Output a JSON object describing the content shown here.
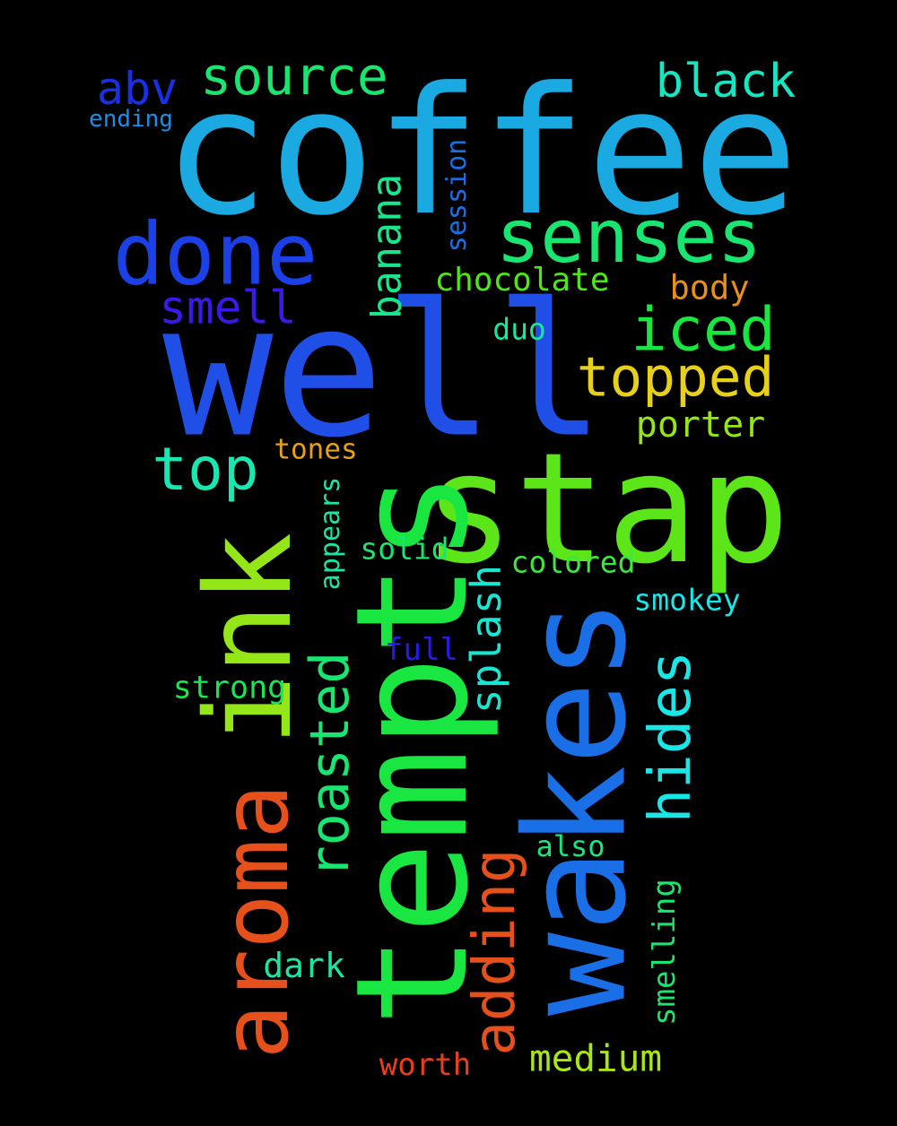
{
  "words": [
    {
      "key": "coffee",
      "text": "coffee",
      "color": "#1aa9e0"
    },
    {
      "key": "well",
      "text": "well",
      "color": "#1f4fe6"
    },
    {
      "key": "stap",
      "text": "stap",
      "color": "#5ce619"
    },
    {
      "key": "tempts",
      "text": "tempts",
      "color": "#19e640"
    },
    {
      "key": "wakes",
      "text": "wakes",
      "color": "#1a6fe6"
    },
    {
      "key": "ink",
      "text": "ink",
      "color": "#94e619"
    },
    {
      "key": "aroma",
      "text": "aroma",
      "color": "#e6501a"
    },
    {
      "key": "done",
      "text": "done",
      "color": "#1a40e6"
    },
    {
      "key": "senses",
      "text": "senses",
      "color": "#19e670"
    },
    {
      "key": "source",
      "text": "source",
      "color": "#19e670"
    },
    {
      "key": "black",
      "text": "black",
      "color": "#19e6c0"
    },
    {
      "key": "abv",
      "text": "abv",
      "color": "#1a30e6"
    },
    {
      "key": "ending",
      "text": "ending",
      "color": "#1a8fe6"
    },
    {
      "key": "smell",
      "text": "smell",
      "color": "#3a1ae6"
    },
    {
      "key": "banana",
      "text": "banana",
      "color": "#19e68a"
    },
    {
      "key": "session",
      "text": "session",
      "color": "#1a6fe6"
    },
    {
      "key": "chocolate",
      "text": "chocolate",
      "color": "#4fe619"
    },
    {
      "key": "body",
      "text": "body",
      "color": "#e6901a"
    },
    {
      "key": "iced",
      "text": "iced",
      "color": "#19e640"
    },
    {
      "key": "topped",
      "text": "topped",
      "color": "#e6d01a"
    },
    {
      "key": "duo",
      "text": "duo",
      "color": "#19e6a0"
    },
    {
      "key": "porter",
      "text": "porter",
      "color": "#94e619"
    },
    {
      "key": "top",
      "text": "top",
      "color": "#19e6b0"
    },
    {
      "key": "tones",
      "text": "tones",
      "color": "#e6a01a"
    },
    {
      "key": "roasted",
      "text": "roasted",
      "color": "#19e670"
    },
    {
      "key": "appears",
      "text": "appears",
      "color": "#19e6a0"
    },
    {
      "key": "solid",
      "text": "solid",
      "color": "#19e670"
    },
    {
      "key": "splash",
      "text": "splash",
      "color": "#19e6d0"
    },
    {
      "key": "colored",
      "text": "colored",
      "color": "#40e640"
    },
    {
      "key": "hides",
      "text": "hides",
      "color": "#19e6e6"
    },
    {
      "key": "smokey",
      "text": "smokey",
      "color": "#19e6e6"
    },
    {
      "key": "full",
      "text": "full",
      "color": "#2a1ae6"
    },
    {
      "key": "strong",
      "text": "strong",
      "color": "#19e650"
    },
    {
      "key": "adding",
      "text": "adding",
      "color": "#e6501a"
    },
    {
      "key": "also",
      "text": "also",
      "color": "#19e680"
    },
    {
      "key": "dark",
      "text": "dark",
      "color": "#19e6a0"
    },
    {
      "key": "smelling",
      "text": "smelling",
      "color": "#19e670"
    },
    {
      "key": "medium",
      "text": "medium",
      "color": "#a8e619"
    },
    {
      "key": "worth",
      "text": "worth",
      "color": "#e6401a"
    }
  ]
}
